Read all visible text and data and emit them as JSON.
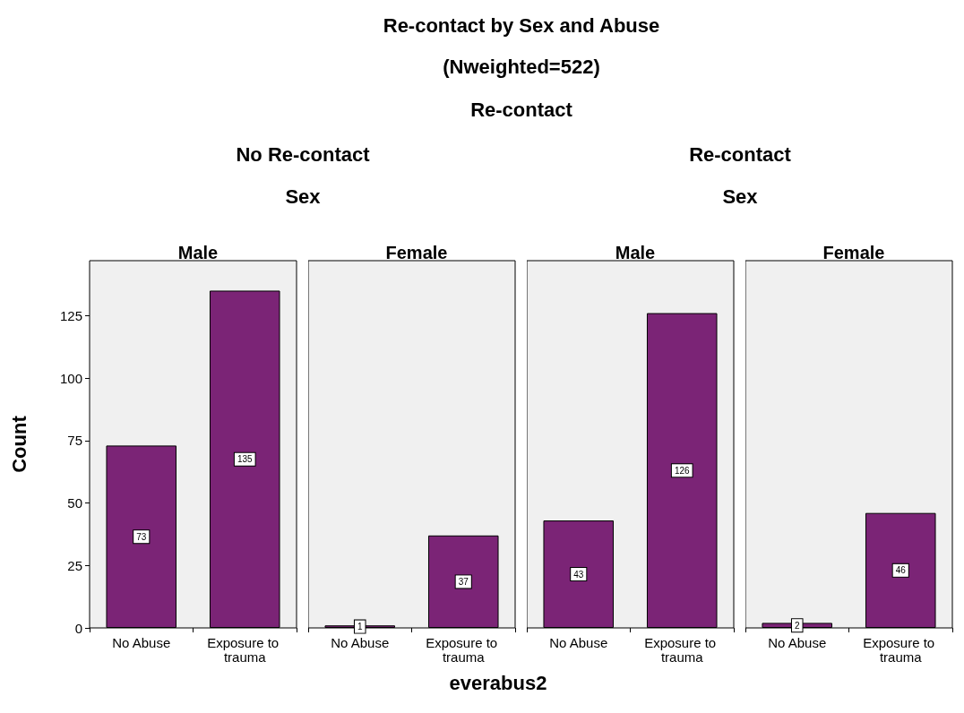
{
  "chart_data": [
    {
      "type": "bar",
      "title": "Male",
      "subtitle": null,
      "categories": [
        "No Abuse",
        "Exposure to trauma"
      ],
      "values": [
        73,
        135
      ],
      "color": "#7b2476",
      "data_labels": true,
      "ylim": [
        0,
        147
      ],
      "yticks": [
        0,
        25,
        50,
        75,
        100,
        125
      ],
      "grid": false,
      "ylabel": "Count",
      "annotations": [
        "Re-contact by Sex and Abuse",
        "(Nweighted=522)",
        "Re-contact",
        "No Re-contact",
        "Sex"
      ]
    },
    {
      "type": "bar",
      "title": "Female",
      "categories": [
        "No Abuse",
        "Exposure to trauma"
      ],
      "values": [
        1,
        37
      ],
      "color": "#7b2476",
      "data_labels": true,
      "xlabel": "everabus2",
      "ylim": [
        0,
        147
      ],
      "yticks": [
        0,
        25,
        50,
        75,
        100,
        125
      ],
      "grid": false,
      "tick_labels": "x"
    },
    {
      "type": "bar",
      "title": "Male",
      "categories": [
        "No Abuse",
        "Exposure to trauma"
      ],
      "values": [
        43,
        126
      ],
      "color": "#7b2476",
      "data_labels": true,
      "ylim": [
        0,
        147
      ],
      "yticks": [
        0,
        25,
        50,
        75,
        100,
        125
      ],
      "grid": false,
      "tick_labels": "x",
      "annotations": [
        "Re-contact",
        "Sex"
      ]
    },
    {
      "type": "bar",
      "title": "Female",
      "categories": [
        "No Abuse",
        "Exposure to trauma"
      ],
      "values": [
        2,
        46
      ],
      "color": "#7b2476",
      "data_labels": true,
      "ylim": [
        0,
        147
      ],
      "yticks": [
        0,
        25,
        50,
        75,
        100,
        125
      ],
      "grid": false,
      "tick_labels": "x"
    }
  ]
}
